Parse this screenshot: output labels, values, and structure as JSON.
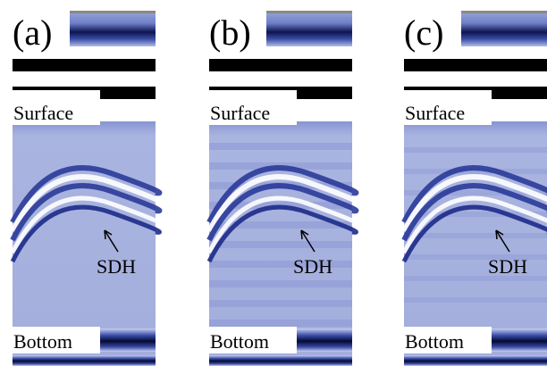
{
  "panels": [
    {
      "label": "(a)",
      "surface": "Surface",
      "defect": "SDH",
      "bottom": "Bottom"
    },
    {
      "label": "(b)",
      "surface": "Surface",
      "defect": "SDH",
      "bottom": "Bottom"
    },
    {
      "label": "(c)",
      "surface": "Surface",
      "defect": "SDH",
      "bottom": "Bottom"
    }
  ]
}
